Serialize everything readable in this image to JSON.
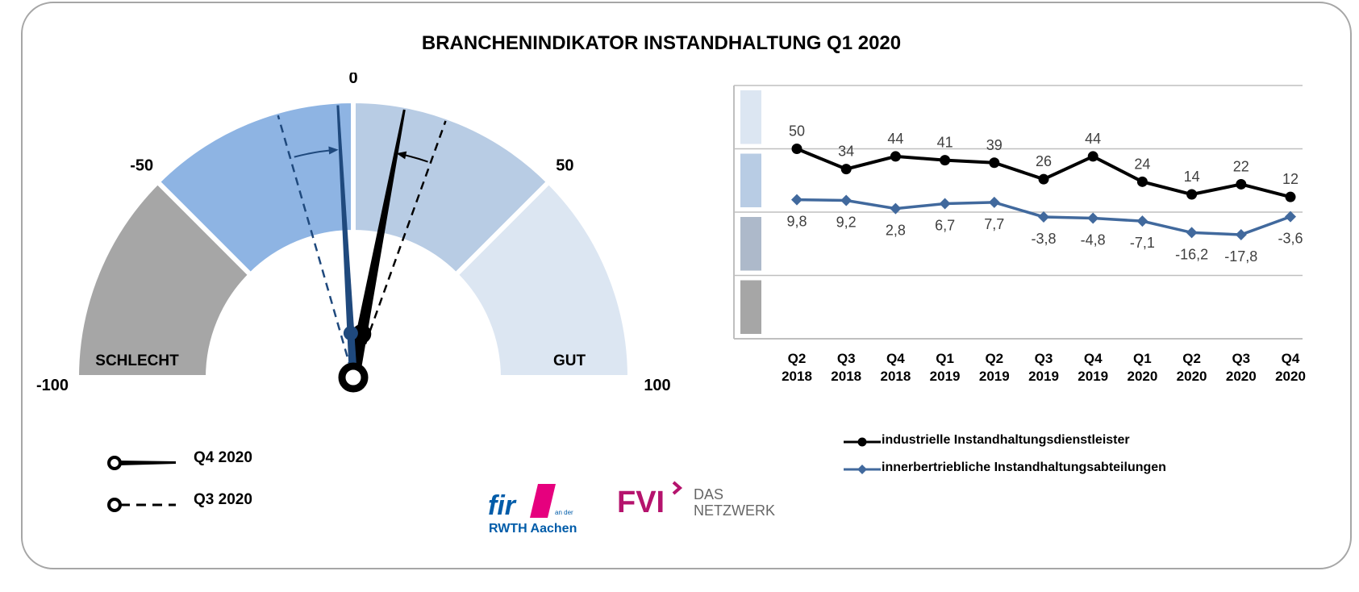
{
  "title": "BRANCHENINDIKATOR INSTANDHALTUNG Q1 2020",
  "chart_data": [
    {
      "type": "gauge",
      "range": [
        -100,
        100
      ],
      "tick_labels": [
        "-100",
        "-50",
        "0",
        "50",
        "100"
      ],
      "zone_labels": {
        "bad": "SCHLECHT",
        "good": "GUT"
      },
      "zones": [
        {
          "from": -100,
          "to": -50,
          "color": "#a6a6a6"
        },
        {
          "from": -50,
          "to": 0,
          "color": "#8eb4e3"
        },
        {
          "from": 0,
          "to": 50,
          "color": "#b8cce4"
        },
        {
          "from": 50,
          "to": 100,
          "color": "#dce6f2"
        }
      ],
      "needles": [
        {
          "series": "industrielle Instandhaltungsdienstleister",
          "period": "Q4 2020",
          "value": 12,
          "color": "#000000",
          "style": "solid"
        },
        {
          "series": "industrielle Instandhaltungsdienstleister",
          "period": "Q3 2020",
          "value": 22,
          "color": "#000000",
          "style": "dashed"
        },
        {
          "series": "innerbertriebliche Instandhaltungsabteilungen",
          "period": "Q4 2020",
          "value": -3.6,
          "color": "#1f497d",
          "style": "solid"
        },
        {
          "series": "innerbertriebliche Instandhaltungsabteilungen",
          "period": "Q3 2020",
          "value": -17.8,
          "color": "#1f497d",
          "style": "dashed"
        }
      ],
      "legend": [
        {
          "label": "Q4 2020",
          "style": "solid"
        },
        {
          "label": "Q3 2020",
          "style": "dashed"
        }
      ]
    },
    {
      "type": "line",
      "categories": [
        [
          "Q2",
          "2018"
        ],
        [
          "Q3",
          "2018"
        ],
        [
          "Q4",
          "2018"
        ],
        [
          "Q1",
          "2019"
        ],
        [
          "Q2",
          "2019"
        ],
        [
          "Q3",
          "2019"
        ],
        [
          "Q4",
          "2019"
        ],
        [
          "Q1",
          "2020"
        ],
        [
          "Q2",
          "2020"
        ],
        [
          "Q3",
          "2020"
        ],
        [
          "Q4",
          "2020"
        ]
      ],
      "ylim": [
        -100,
        100
      ],
      "grid": true,
      "band_colors": [
        "#dce6f2",
        "#b8cce4",
        "#adb9ca",
        "#a6a6a6"
      ],
      "series": [
        {
          "name": "industrielle Instandhaltungsdienstleister",
          "color": "#000000",
          "marker": "circle",
          "values": [
            50,
            34,
            44,
            41,
            39,
            26,
            44,
            24,
            14,
            22,
            12
          ],
          "labels": [
            "50",
            "34",
            "44",
            "41",
            "39",
            "26",
            "44",
            "24",
            "14",
            "22",
            "12"
          ]
        },
        {
          "name": "innerbertriebliche Instandhaltungsabteilungen",
          "color": "#41699d",
          "marker": "diamond",
          "values": [
            9.8,
            9.2,
            2.8,
            6.7,
            7.7,
            -3.8,
            -4.8,
            -7.1,
            -16.2,
            -17.8,
            -3.6
          ],
          "labels": [
            "9,8",
            "9,2",
            "2,8",
            "6,7",
            "7,7",
            "-3,8",
            "-4,8",
            "-7,1",
            "-16,2",
            "-17,8",
            "-3,6"
          ]
        }
      ]
    }
  ],
  "logos": {
    "fir_main": "fir",
    "fir_small": "an der",
    "fir_sub": "RWTH Aachen",
    "fvi_main": "FVI",
    "fvi_line1": "DAS",
    "fvi_line2": "NETZWERK"
  }
}
